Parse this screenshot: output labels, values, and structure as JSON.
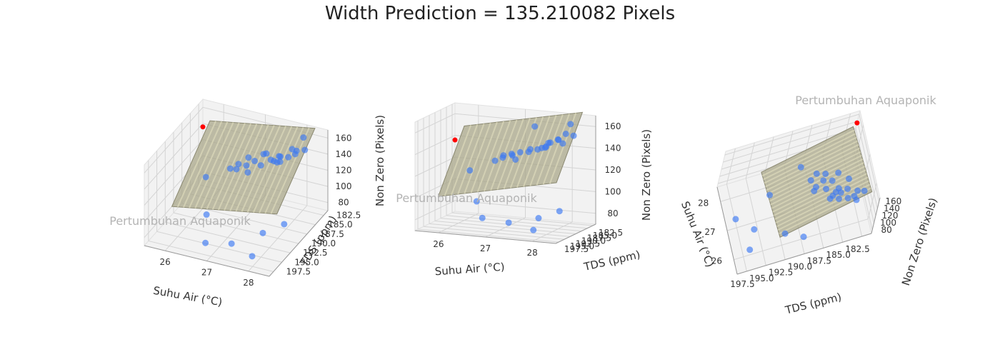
{
  "figure": {
    "title": "Width Prediction = 135.210082 Pixels",
    "watermark": "Pertumbuhan Aquaponik"
  },
  "axes_labels": {
    "x": "Suhu Air (°C)",
    "y": "TDS (ppm)",
    "z": "Non Zero (Pixels)"
  },
  "colors": {
    "observed": "#3a78f2",
    "prediction": "#ff0000",
    "plane": "#a9a78a",
    "pane": "#f2f2f2",
    "grid": "#d4d4d4"
  },
  "chart_data": [
    {
      "type": "scatter",
      "view": "left",
      "x_ticks": [
        "28",
        "27",
        "26"
      ],
      "y_ticks": [
        "182.5",
        "185.0",
        "187.5",
        "190.0",
        "192.5",
        "195.0",
        "197.5"
      ],
      "z_ticks": [
        "80",
        "100",
        "120",
        "140",
        "160"
      ],
      "xlim": [
        25.8,
        28.4
      ],
      "ylim": [
        181.5,
        198.5
      ],
      "zlim": [
        78,
        165
      ]
    },
    {
      "type": "scatter",
      "view": "middle",
      "x_ticks": [
        "28",
        "27",
        "26"
      ],
      "y_ticks": [
        "182.5",
        "185.0",
        "187.5",
        "190.0",
        "192.5",
        "195.0",
        "197.5"
      ],
      "z_ticks": [
        "80",
        "100",
        "120",
        "140",
        "160"
      ],
      "xlim": [
        25.8,
        28.4
      ],
      "ylim": [
        181.5,
        198.5
      ],
      "zlim": [
        78,
        165
      ]
    },
    {
      "type": "scatter",
      "view": "right",
      "x_ticks": [
        "26",
        "27",
        "28"
      ],
      "y_ticks": [
        "182.5",
        "185.0",
        "187.5",
        "190.0",
        "192.5",
        "195.0",
        "197.5"
      ],
      "z_ticks": [
        "80",
        "100",
        "120",
        "140",
        "160"
      ],
      "xlim": [
        25.8,
        28.4
      ],
      "ylim": [
        181.5,
        198.5
      ],
      "zlim": [
        78,
        165
      ]
    }
  ],
  "series": {
    "observed_points": [
      {
        "x": 26.1,
        "y": 184,
        "z": 150
      },
      {
        "x": 26.2,
        "y": 185,
        "z": 152
      },
      {
        "x": 26.3,
        "y": 186,
        "z": 148
      },
      {
        "x": 26.4,
        "y": 187,
        "z": 146
      },
      {
        "x": 26.5,
        "y": 185.5,
        "z": 144
      },
      {
        "x": 26.3,
        "y": 184,
        "z": 143
      },
      {
        "x": 26.5,
        "y": 186.5,
        "z": 142
      },
      {
        "x": 26.6,
        "y": 186,
        "z": 140
      },
      {
        "x": 26.6,
        "y": 184.5,
        "z": 139
      },
      {
        "x": 26.7,
        "y": 185.5,
        "z": 138
      },
      {
        "x": 26.8,
        "y": 187,
        "z": 137
      },
      {
        "x": 26.4,
        "y": 183.5,
        "z": 145
      },
      {
        "x": 27.0,
        "y": 186,
        "z": 135
      },
      {
        "x": 27.1,
        "y": 187,
        "z": 133
      },
      {
        "x": 27.2,
        "y": 185,
        "z": 132
      },
      {
        "x": 27.0,
        "y": 188,
        "z": 131
      },
      {
        "x": 27.3,
        "y": 186.5,
        "z": 130
      },
      {
        "x": 26.9,
        "y": 184,
        "z": 136
      },
      {
        "x": 27.2,
        "y": 188.5,
        "z": 134
      },
      {
        "x": 27.4,
        "y": 187.5,
        "z": 128
      },
      {
        "x": 26.2,
        "y": 183,
        "z": 158
      },
      {
        "x": 26.6,
        "y": 189,
        "z": 160
      },
      {
        "x": 27.8,
        "y": 189,
        "z": 120
      },
      {
        "x": 26.1,
        "y": 190,
        "z": 95
      },
      {
        "x": 26.4,
        "y": 192,
        "z": 90
      },
      {
        "x": 27.5,
        "y": 193,
        "z": 100
      },
      {
        "x": 26.8,
        "y": 195.5,
        "z": 88
      },
      {
        "x": 26.3,
        "y": 196.5,
        "z": 85
      },
      {
        "x": 27.2,
        "y": 197.5,
        "z": 92
      }
    ],
    "prediction_point": {
      "x": 28.4,
      "y": 181.5,
      "z": 135.210082
    }
  }
}
